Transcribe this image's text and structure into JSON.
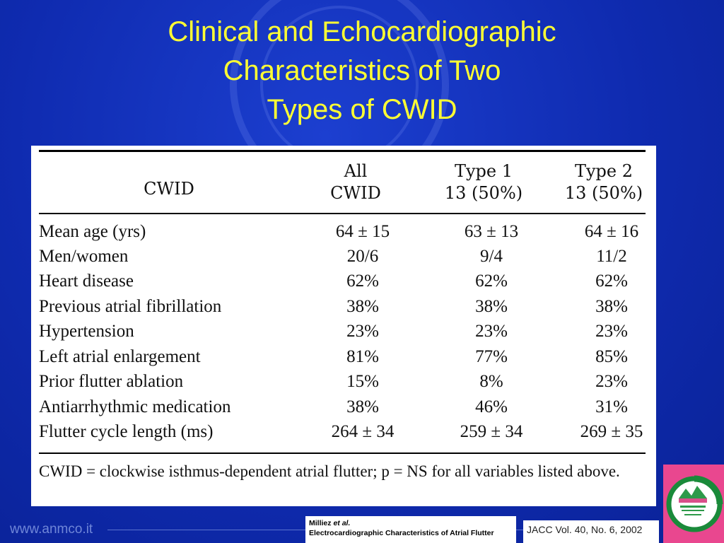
{
  "slide": {
    "title_lines": [
      "Clinical and Echocardiographic",
      "Characteristics of Two",
      "Types of CWID"
    ]
  },
  "table": {
    "headers": {
      "label": "CWID",
      "all": [
        "All",
        "CWID"
      ],
      "type1": [
        "Type 1",
        "13 (50%)"
      ],
      "type2": [
        "Type 2",
        "13 (50%)"
      ]
    },
    "rows": [
      {
        "label": "Mean age (yrs)",
        "all": "64 ± 15",
        "type1": "63 ± 13",
        "type2": "64 ± 16"
      },
      {
        "label": "Men/women",
        "all": "20/6",
        "type1": "9/4",
        "type2": "11/2"
      },
      {
        "label": "Heart disease",
        "all": "62%",
        "type1": "62%",
        "type2": "62%"
      },
      {
        "label": "Previous atrial fibrillation",
        "all": "38%",
        "type1": "38%",
        "type2": "38%"
      },
      {
        "label": "Hypertension",
        "all": "23%",
        "type1": "23%",
        "type2": "23%"
      },
      {
        "label": "Left atrial enlargement",
        "all": "81%",
        "type1": "77%",
        "type2": "85%"
      },
      {
        "label": "Prior flutter ablation",
        "all": "15%",
        "type1": "8%",
        "type2": "23%"
      },
      {
        "label": "Antiarrhythmic medication",
        "all": "38%",
        "type1": "46%",
        "type2": "31%"
      },
      {
        "label": "Flutter cycle length (ms)",
        "all": "264 ± 34",
        "type1": "259 ± 34",
        "type2": "269 ± 35"
      }
    ],
    "footnote": "CWID = clockwise isthmus-dependent atrial flutter; p = NS for all variables listed above."
  },
  "footer": {
    "site": "www.anmco.it",
    "reference_author": "Milliez",
    "reference_etal": "et al.",
    "reference_title": "Electrocardiographic Characteristics of Atrial Flutter",
    "journal": "JACC Vol. 40, No. 6, 2002"
  },
  "colors": {
    "background": "#1030b8",
    "title": "#ffff33",
    "panel": "#ffffff",
    "logo_bg": "#e9478f"
  }
}
